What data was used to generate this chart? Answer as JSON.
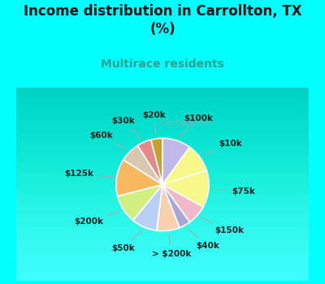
{
  "title": "Income distribution in Carrollton, TX\n(%)",
  "subtitle": "Multirace residents",
  "bg_color": "#00FFFF",
  "chart_bg_top": "#f0faf5",
  "chart_bg_bottom": "#d0f0e8",
  "labels": [
    "$100k",
    "$10k",
    "$75k",
    "$150k",
    "$40k",
    "> $200k",
    "$50k",
    "$200k",
    "$125k",
    "$60k",
    "$30k",
    "$20k"
  ],
  "values": [
    10,
    10,
    13,
    7,
    4,
    8,
    9,
    10,
    13,
    7,
    5,
    4
  ],
  "colors": [
    "#c0b8e8",
    "#f8f888",
    "#f8f888",
    "#f0b8c8",
    "#a8a8d8",
    "#f8d0b0",
    "#b8d0f8",
    "#d0f080",
    "#f8b860",
    "#d8c8b0",
    "#e88888",
    "#c8a030"
  ],
  "watermark": "City-Data.com",
  "title_fontsize": 12,
  "subtitle_fontsize": 10,
  "label_fontsize": 7.5
}
